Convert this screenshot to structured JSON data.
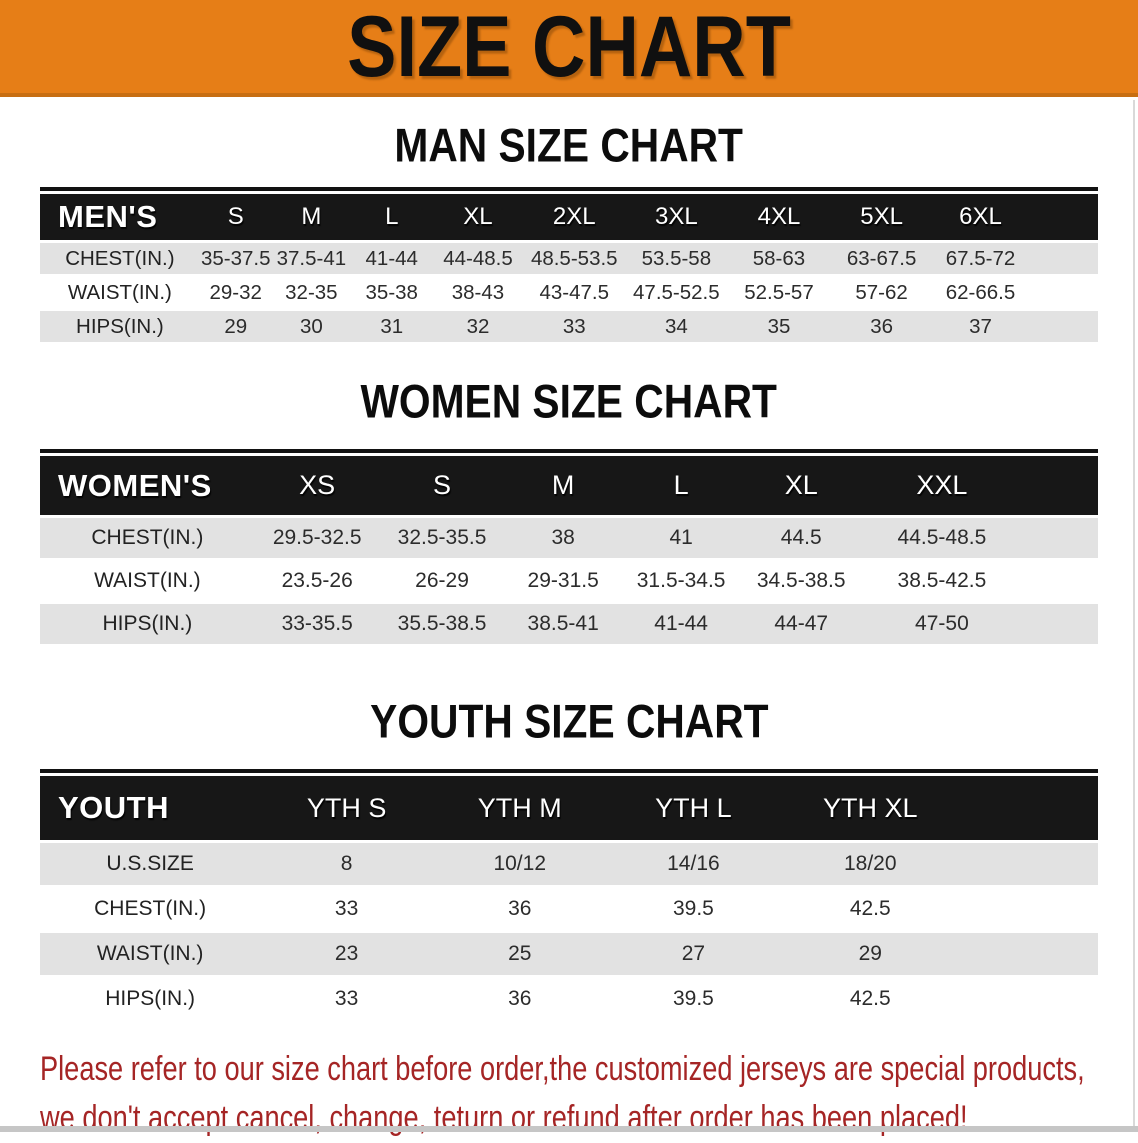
{
  "banner": {
    "title": "SIZE CHART"
  },
  "sections": [
    {
      "heading": "MAN SIZE CHART",
      "table": {
        "header_label": "MEN'S",
        "sizes": [
          "S",
          "M",
          "L",
          "XL",
          "2XL",
          "3XL",
          "4XL",
          "5XL",
          "6XL"
        ],
        "rows": [
          {
            "label": "CHEST(IN.)",
            "values": [
              "35-37.5",
              "37.5-41",
              "41-44",
              "44-48.5",
              "48.5-53.5",
              "53.5-58",
              "58-63",
              "63-67.5",
              "67.5-72"
            ]
          },
          {
            "label": "WAIST(IN.)",
            "values": [
              "29-32",
              "32-35",
              "35-38",
              "38-43",
              "43-47.5",
              "47.5-52.5",
              "52.5-57",
              "57-62",
              "62-66.5"
            ]
          },
          {
            "label": "HIPS(IN.)",
            "values": [
              "29",
              "30",
              "31",
              "32",
              "33",
              "34",
              "35",
              "36",
              "37"
            ]
          }
        ]
      }
    },
    {
      "heading": "WOMEN SIZE CHART",
      "table": {
        "header_label": "WOMEN'S",
        "sizes": [
          "XS",
          "S",
          "M",
          "L",
          "XL",
          "XXL"
        ],
        "rows": [
          {
            "label": "CHEST(IN.)",
            "values": [
              "29.5-32.5",
              "32.5-35.5",
              "38",
              "41",
              "44.5",
              "44.5-48.5"
            ]
          },
          {
            "label": "WAIST(IN.)",
            "values": [
              "23.5-26",
              "26-29",
              "29-31.5",
              "31.5-34.5",
              "34.5-38.5",
              "38.5-42.5"
            ]
          },
          {
            "label": "HIPS(IN.)",
            "values": [
              "33-35.5",
              "35.5-38.5",
              "38.5-41",
              "41-44",
              "44-47",
              "47-50"
            ]
          }
        ]
      }
    },
    {
      "heading": "YOUTH SIZE CHART",
      "table": {
        "header_label": "YOUTH",
        "sizes": [
          "YTH S",
          "YTH M",
          "YTH L",
          "YTH XL"
        ],
        "rows": [
          {
            "label": "U.S.SIZE",
            "values": [
              "8",
              "10/12",
              "14/16",
              "18/20"
            ]
          },
          {
            "label": "CHEST(IN.)",
            "values": [
              "33",
              "36",
              "39.5",
              "42.5"
            ]
          },
          {
            "label": "WAIST(IN.)",
            "values": [
              "23",
              "25",
              "27",
              "29"
            ]
          },
          {
            "label": "HIPS(IN.)",
            "values": [
              "33",
              "36",
              "39.5",
              "42.5"
            ]
          }
        ]
      }
    }
  ],
  "disclaimer": {
    "line1": "Please refer to our size chart before order,the customized jerseys are special products,",
    "line2": "we don't accept cancel, change, teturn or refund after order has been placed!"
  },
  "colors": {
    "banner_orange": "#E67E17",
    "table_header_black": "#171717",
    "row_stripe_gray": "#E2E2E2",
    "disclaimer_red": "#A52525"
  }
}
